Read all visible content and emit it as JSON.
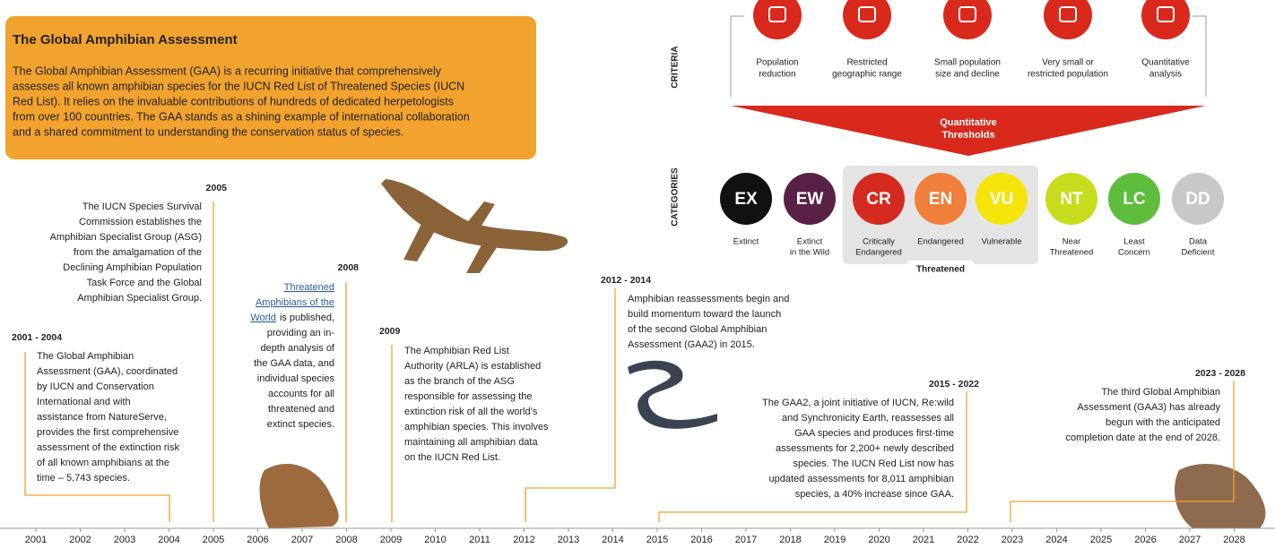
{
  "intro": {
    "title": "The Global Amphibian Assessment",
    "lines": [
      "The Global Amphibian Assessment (GAA) is a recurring initiative that comprehensively",
      "assesses all known amphibian species for the IUCN Red List of Threatened Species (IUCN",
      "Red List). It relies on the invaluable contributions of hundreds of dedicated herpetologists",
      "from over 100 countries. The GAA stands as a shining example of international collaboration",
      "and a shared commitment to understanding the conservation status of species."
    ]
  },
  "criteria": {
    "label": "CRITERIA",
    "items": [
      [
        "Population",
        "reduction"
      ],
      [
        "Restricted",
        "geographic range"
      ],
      [
        "Small population",
        "size and decline"
      ],
      [
        "Very small or",
        "restricted population"
      ],
      [
        "Quantitative",
        "analysis"
      ]
    ],
    "threshold": [
      "Quantitative",
      "Thresholds"
    ]
  },
  "categories": {
    "label": "CATEGORIES",
    "items": [
      {
        "code": "EX",
        "lines": [
          "Extinct"
        ]
      },
      {
        "code": "EW",
        "lines": [
          "Extinct",
          "in the Wild"
        ]
      },
      {
        "code": "CR",
        "lines": [
          "Critically",
          "Endangered"
        ]
      },
      {
        "code": "EN",
        "lines": [
          "Endangered"
        ]
      },
      {
        "code": "VU",
        "lines": [
          "Vulnerable"
        ]
      },
      {
        "code": "NT",
        "lines": [
          "Near",
          "Threatened"
        ]
      },
      {
        "code": "LC",
        "lines": [
          "Least",
          "Concern"
        ]
      },
      {
        "code": "DD",
        "lines": [
          "Data",
          "Deficient"
        ]
      }
    ],
    "group_label": "Threatened"
  },
  "timeline": {
    "events": [
      {
        "period": "2001 - 2004",
        "lines": [
          "The Global Amphibian",
          "Assessment (GAA), coordinated",
          "by IUCN and Conservation",
          "International and with",
          "assistance from NatureServe,",
          "provides the first comprehensive",
          "assessment of the extinction risk",
          "of all known amphibians at the",
          "time – 5,743 species."
        ]
      },
      {
        "period": "2005",
        "lines": [
          "The IUCN Species Survival",
          "Commission establishes the",
          "Amphibian Specialist Group (ASG)",
          "from the amalgamation of the",
          "Declining Amphibian Population",
          "Task Force and the Global",
          "Amphibian Specialist Group."
        ]
      },
      {
        "period": "2008",
        "link": [
          "Threatened",
          "Amphibians of the",
          "World"
        ],
        "lines": [
          "is published,",
          "providing an in-",
          "depth analysis of",
          "the GAA data, and",
          "individual species",
          "accounts for all",
          "threatened and",
          "extinct species."
        ]
      },
      {
        "period": "2009",
        "lines": [
          "The Amphibian Red List",
          "Authority (ARLA) is established",
          "as the branch of the ASG",
          "responsible for assessing the",
          "extinction risk of all the world’s",
          "amphibian species. This involves",
          "maintaining all amphibian data",
          "on the IUCN Red List."
        ]
      },
      {
        "period": "2012 - 2014",
        "lines": [
          "Amphibian reassessments begin and",
          "build momentum toward the launch",
          "of the second Global Amphibian",
          "Assessment (GAA2) in 2015."
        ]
      },
      {
        "period": "2015 - 2022",
        "lines": [
          "The GAA2, a joint initiative of IUCN, Re:wild",
          "and Synchronicity Earth, reassesses all",
          "GAA species and produces first-time",
          "assessments for 2,200+ newly described",
          "species. The IUCN Red List now has",
          "updated assessments for 8,011 amphibian",
          "species, a 40% increase since GAA."
        ]
      },
      {
        "period": "2023 - 2028",
        "lines": [
          "The third Global Amphibian",
          "Assessment (GAA3) has already",
          "begun with the anticipated",
          "completion date at the end of 2028."
        ]
      }
    ],
    "years": [
      "2001",
      "2002",
      "2003",
      "2004",
      "2005",
      "2006",
      "2007",
      "2008",
      "2009",
      "2010",
      "2011",
      "2012",
      "2013",
      "2014",
      "2015",
      "2016",
      "2017",
      "2018",
      "2019",
      "2020",
      "2021",
      "2022",
      "2023",
      "2024",
      "2025",
      "2026",
      "2027",
      "2028"
    ]
  }
}
